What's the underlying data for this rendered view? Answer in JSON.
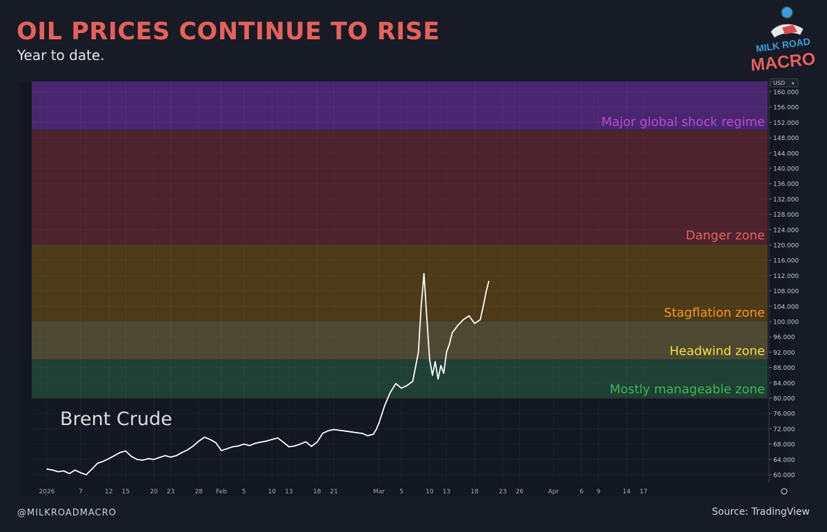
{
  "header": {
    "title": "OIL PRICES CONTINUE TO RISE",
    "subtitle": "Year to date."
  },
  "logo": {
    "line1": "MILK ROAD",
    "line2": "MACRO"
  },
  "footer": {
    "handle": "@MILKROADMACRO",
    "source": "Source: TradingView"
  },
  "colors": {
    "title": "#e8605a",
    "background": "#161b26",
    "plot_bg": "#131722",
    "line": "#ffffff"
  },
  "chart_data": {
    "type": "line",
    "title": "OIL PRICES CONTINUE TO RISE",
    "subtitle": "Year to date.",
    "series_label": "Brent Crude",
    "currency": "USD",
    "ylim": [
      58,
      162
    ],
    "y_ticks": [
      "160.000",
      "156.000",
      "152.000",
      "148.000",
      "144.000",
      "140.000",
      "136.000",
      "132.000",
      "128.000",
      "124.000",
      "120.000",
      "116.000",
      "112.000",
      "108.000",
      "104.000",
      "100.000",
      "96.000",
      "92.000",
      "88.000",
      "84.000",
      "80.000",
      "76.000",
      "72.000",
      "68.000",
      "64.000",
      "60.000"
    ],
    "x_ticks": [
      {
        "label": "2026",
        "day": 0
      },
      {
        "label": "7",
        "day": 6
      },
      {
        "label": "12",
        "day": 11
      },
      {
        "label": "15",
        "day": 14
      },
      {
        "label": "20",
        "day": 19
      },
      {
        "label": "23",
        "day": 22
      },
      {
        "label": "28",
        "day": 27
      },
      {
        "label": "Feb",
        "day": 31
      },
      {
        "label": "5",
        "day": 35
      },
      {
        "label": "10",
        "day": 40
      },
      {
        "label": "13",
        "day": 43
      },
      {
        "label": "18",
        "day": 48
      },
      {
        "label": "21",
        "day": 51
      },
      {
        "label": "Mar",
        "day": 59
      },
      {
        "label": "5",
        "day": 63
      },
      {
        "label": "10",
        "day": 68
      },
      {
        "label": "13",
        "day": 71
      },
      {
        "label": "18",
        "day": 76
      },
      {
        "label": "23",
        "day": 81
      },
      {
        "label": "26",
        "day": 84
      },
      {
        "label": "Apr",
        "day": 90
      },
      {
        "label": "6",
        "day": 95
      },
      {
        "label": "9",
        "day": 98
      },
      {
        "label": "14",
        "day": 103
      },
      {
        "label": "17",
        "day": 106
      }
    ],
    "zones": [
      {
        "name": "Major global shock regime",
        "from": 150,
        "to": 170,
        "fill": "#4b2670",
        "label_color": "#b64ad1"
      },
      {
        "name": "Danger zone",
        "from": 120,
        "to": 150,
        "fill": "#4d232d",
        "label_color": "#e8605a"
      },
      {
        "name": "Stagflation zone",
        "from": 100,
        "to": 120,
        "fill": "#4d3a18",
        "label_color": "#f29a1e"
      },
      {
        "name": "Headwind zone",
        "from": 90,
        "to": 100,
        "fill": "#4c4832",
        "label_color": "#f0e040"
      },
      {
        "name": "Mostly manageable zone",
        "from": 80,
        "to": 90,
        "fill": "#1f4034",
        "label_color": "#3db752"
      }
    ],
    "series": [
      {
        "name": "Brent Crude",
        "x": [
          0,
          1,
          2,
          3,
          4,
          5,
          6,
          7,
          8,
          9,
          10,
          11,
          12,
          13,
          14,
          15,
          16,
          17,
          18,
          19,
          20,
          21,
          22,
          23,
          24,
          25,
          26,
          27,
          28,
          29,
          30,
          31,
          32,
          33,
          34,
          35,
          36,
          37,
          38,
          39,
          40,
          41,
          42,
          43,
          44,
          45,
          46,
          47,
          48,
          49,
          50,
          51,
          52,
          53,
          54,
          55,
          56,
          57,
          58,
          58.5,
          59,
          60,
          61,
          62,
          63,
          64,
          65,
          66,
          66.5,
          67,
          67.5,
          68,
          68.5,
          69,
          69.5,
          70,
          70.5,
          71,
          71.5,
          72,
          73,
          74,
          75,
          76,
          77,
          77.5,
          78,
          78.5
        ],
        "values": [
          61.5,
          61.2,
          60.8,
          61.0,
          60.3,
          61.2,
          60.5,
          60.0,
          61.5,
          63.0,
          63.5,
          64.2,
          65.0,
          65.8,
          66.2,
          64.8,
          64.0,
          63.8,
          64.2,
          64.0,
          64.5,
          65.0,
          64.6,
          65.0,
          65.8,
          66.5,
          67.5,
          68.8,
          69.8,
          69.2,
          68.4,
          66.3,
          66.8,
          67.3,
          67.5,
          68.0,
          67.6,
          68.2,
          68.5,
          68.8,
          69.2,
          69.6,
          68.5,
          67.3,
          67.5,
          68.0,
          68.6,
          67.4,
          68.5,
          70.8,
          71.5,
          71.8,
          71.6,
          71.4,
          71.2,
          71.0,
          70.8,
          70.2,
          70.6,
          71.8,
          73.5,
          78.0,
          81.5,
          83.8,
          82.6,
          83.3,
          84.4,
          92.0,
          104.0,
          112.5,
          101.0,
          90.0,
          86.0,
          89.5,
          85.0,
          88.5,
          86.5,
          92.0,
          94.0,
          97.0,
          99.0,
          100.5,
          101.5,
          99.5,
          100.5,
          103.8,
          107.5,
          110.5
        ]
      }
    ]
  }
}
